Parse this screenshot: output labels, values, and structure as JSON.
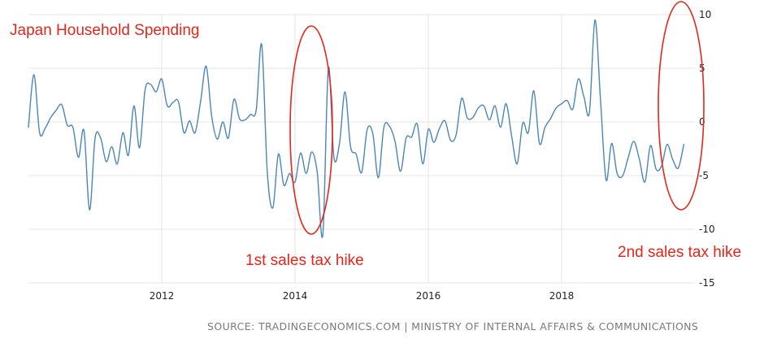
{
  "chart_data": {
    "type": "line",
    "title": "Japan Household Spending",
    "xlabel": "",
    "ylabel": "",
    "xlim": [
      2010.0,
      2020.0
    ],
    "ylim": [
      -15,
      10
    ],
    "y_ticks": [
      -15,
      -10,
      -5,
      0,
      5,
      10
    ],
    "x_ticks": [
      "2012",
      "2014",
      "2016",
      "2018"
    ],
    "grid": true,
    "legend": "none",
    "series": [
      {
        "color": "#4a86b8",
        "x": [
          2010.0,
          2010.083,
          2010.167,
          2010.25,
          2010.333,
          2010.417,
          2010.5,
          2010.583,
          2010.667,
          2010.75,
          2010.833,
          2010.917,
          2011.0,
          2011.083,
          2011.167,
          2011.25,
          2011.333,
          2011.417,
          2011.5,
          2011.583,
          2011.667,
          2011.75,
          2011.833,
          2011.917,
          2012.0,
          2012.083,
          2012.167,
          2012.25,
          2012.333,
          2012.417,
          2012.5,
          2012.583,
          2012.667,
          2012.75,
          2012.833,
          2012.917,
          2013.0,
          2013.083,
          2013.167,
          2013.25,
          2013.333,
          2013.417,
          2013.5,
          2013.583,
          2013.667,
          2013.75,
          2013.833,
          2013.917,
          2014.0,
          2014.083,
          2014.167,
          2014.25,
          2014.333,
          2014.417,
          2014.5,
          2014.583,
          2014.667,
          2014.75,
          2014.833,
          2014.917,
          2015.0,
          2015.083,
          2015.167,
          2015.25,
          2015.333,
          2015.417,
          2015.5,
          2015.583,
          2015.667,
          2015.75,
          2015.833,
          2015.917,
          2016.0,
          2016.083,
          2016.167,
          2016.25,
          2016.333,
          2016.417,
          2016.5,
          2016.583,
          2016.667,
          2016.75,
          2016.833,
          2016.917,
          2017.0,
          2017.083,
          2017.167,
          2017.25,
          2017.333,
          2017.417,
          2017.5,
          2017.583,
          2017.667,
          2017.75,
          2017.833,
          2017.917,
          2018.0,
          2018.083,
          2018.167,
          2018.25,
          2018.333,
          2018.417,
          2018.5,
          2018.583,
          2018.667,
          2018.75,
          2018.833,
          2018.917,
          2019.0,
          2019.083,
          2019.167,
          2019.25,
          2019.333,
          2019.417,
          2019.5,
          2019.583,
          2019.667,
          2019.75,
          2019.833
        ],
        "values": [
          -0.5,
          4.4,
          -1.0,
          -0.6,
          0.4,
          1.1,
          1.6,
          -0.3,
          -0.5,
          -3.3,
          -0.8,
          -8.2,
          -1.5,
          -1.5,
          -3.7,
          -2.3,
          -3.9,
          -1.0,
          -3.1,
          1.5,
          -2.4,
          3.0,
          3.5,
          2.8,
          4.0,
          1.5,
          1.8,
          1.9,
          -1.0,
          0.1,
          -1.0,
          1.9,
          5.2,
          0.5,
          -1.6,
          0.0,
          -1.5,
          2.1,
          0.3,
          0.2,
          0.7,
          1.1,
          7.2,
          -4.6,
          -8.0,
          -3.0,
          -5.9,
          -4.8,
          -5.6,
          -2.9,
          -4.8,
          -2.8,
          -4.7,
          -10.5,
          5.0,
          -3.3,
          -2.0,
          2.8,
          -2.3,
          -3.0,
          -4.7,
          -0.7,
          -1.1,
          -5.2,
          -0.5,
          -0.4,
          -1.8,
          -4.6,
          -1.5,
          -1.4,
          -0.2,
          -3.9,
          -0.7,
          -1.9,
          -0.6,
          0.1,
          -1.7,
          -1.2,
          2.2,
          0.4,
          0.4,
          1.3,
          1.5,
          0.2,
          1.5,
          -0.5,
          1.7,
          -1.3,
          -3.9,
          -0.1,
          -1.0,
          2.9,
          -2.0,
          -0.5,
          0.3,
          1.3,
          1.7,
          2.0,
          1.2,
          4.0,
          2.4,
          0.9,
          9.5,
          2.1,
          -5.4,
          -2.0,
          -4.8,
          -5.0,
          -3.3,
          -1.8,
          -3.5,
          -5.6,
          -2.2,
          -4.4,
          -4.1,
          -2.1,
          -3.5,
          -4.3,
          -2.1
        ],
        "note": "values beyond 2019.75 truncated"
      }
    ],
    "annotations": [
      {
        "text": "1st sales tax hike",
        "color": "#e8251a"
      },
      {
        "text": "2nd sales tax hike",
        "color": "#e8251a"
      }
    ]
  },
  "source_text": "SOURCE: TRADINGECONOMICS.COM | MINISTRY OF INTERNAL AFFAIRS & COMMUNICATIONS",
  "colors": {
    "line": "#4a86b8",
    "annotation": "#e8251a",
    "grid": "#e4e4e4",
    "source": "#7a7a7a"
  }
}
